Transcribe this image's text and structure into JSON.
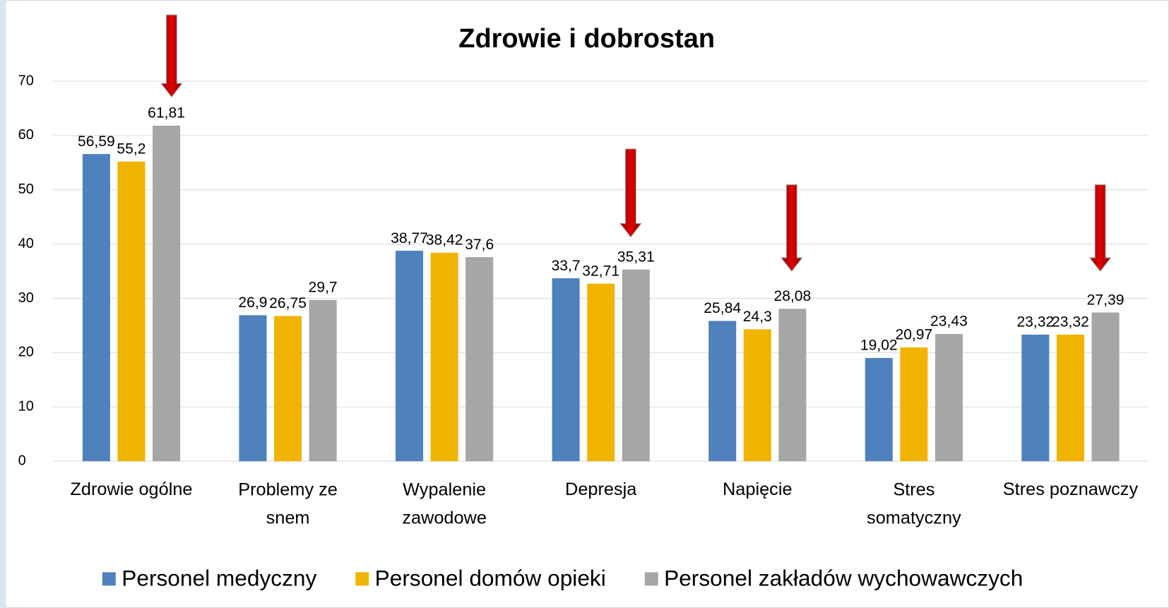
{
  "chart_data": {
    "type": "bar",
    "title": "Zdrowie i dobrostan",
    "categories": [
      "Zdrowie ogólne",
      "Problemy ze snem",
      "Wypalenie zawodowe",
      "Depresja",
      "Napięcie",
      "Stres somatyczny",
      "Stres poznawczy"
    ],
    "series": [
      {
        "name": "Personel medyczny",
        "color": "#4f81bd",
        "values": [
          56.59,
          26.9,
          38.77,
          33.7,
          25.84,
          19.02,
          23.32
        ],
        "value_labels": [
          "56,59",
          "26,9",
          "38,77",
          "33,7",
          "25,84",
          "19,02",
          "23,32"
        ]
      },
      {
        "name": "Personel domów opieki",
        "color": "#f0b400",
        "values": [
          55.2,
          26.75,
          38.42,
          32.71,
          24.3,
          20.97,
          23.32
        ],
        "value_labels": [
          "55,2",
          "26,75",
          "38,42",
          "32,71",
          "24,3",
          "20,97",
          "23,32"
        ]
      },
      {
        "name": "Personel zakładów wychowawczych",
        "color": "#a6a6a6",
        "values": [
          61.81,
          29.7,
          37.6,
          35.31,
          28.08,
          23.43,
          27.39
        ],
        "value_labels": [
          "61,81",
          "29,7",
          "37,6",
          "35,31",
          "28,08",
          "23,43",
          "27,39"
        ]
      }
    ],
    "ylim": [
      0,
      70
    ],
    "yticks": [
      0,
      10,
      20,
      30,
      40,
      50,
      60,
      70
    ],
    "grid": true,
    "legend": "bottom"
  }
}
